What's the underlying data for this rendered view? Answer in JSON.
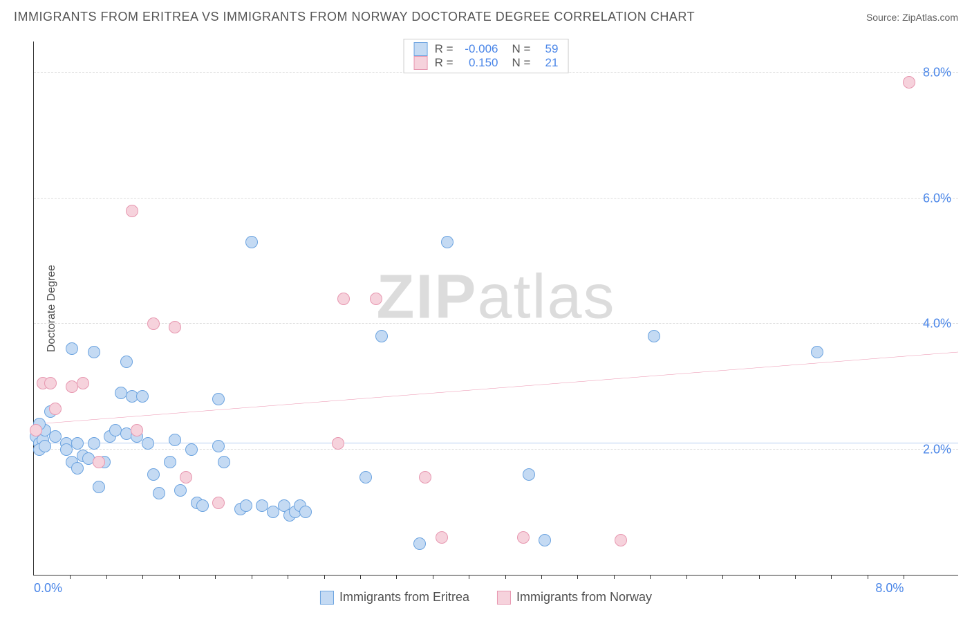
{
  "title": "IMMIGRANTS FROM ERITREA VS IMMIGRANTS FROM NORWAY DOCTORATE DEGREE CORRELATION CHART",
  "source": "Source: ZipAtlas.com",
  "y_axis_label": "Doctorate Degree",
  "watermark_bold": "ZIP",
  "watermark_rest": "atlas",
  "chart": {
    "type": "scatter",
    "xlim": [
      0,
      8.5
    ],
    "ylim": [
      0,
      8.5
    ],
    "y_ticks": [
      2.0,
      4.0,
      6.0,
      8.0
    ],
    "y_tick_labels": [
      "2.0%",
      "4.0%",
      "6.0%",
      "8.0%"
    ],
    "x_ticks": [
      0.333,
      0.667,
      1.0,
      1.333,
      1.667,
      2.0,
      2.333,
      2.667,
      3.0,
      3.333,
      3.667,
      4.0,
      4.333,
      4.667,
      5.0,
      5.333,
      5.667,
      6.0,
      6.333,
      6.667,
      7.0,
      7.333,
      7.667,
      8.0
    ],
    "x_tick_labels_shown": {
      "min": "0.0%",
      "max": "8.0%"
    },
    "grid_color": "#dddddd",
    "background_color": "#ffffff",
    "axis_color": "#333333",
    "tick_label_color": "#4a86e8",
    "series": [
      {
        "name": "Immigrants from Eritrea",
        "fill_color": "#c4daf3",
        "stroke_color": "#6ba3e0",
        "trend_color": "#2a6bd4",
        "trend": {
          "x1": 0,
          "y1": 2.1,
          "x2": 8.5,
          "y2": 2.1
        },
        "R": "-0.006",
        "N": "59",
        "point_radius": 9,
        "points": [
          [
            0.02,
            2.2
          ],
          [
            0.05,
            2.1
          ],
          [
            0.08,
            2.15
          ],
          [
            0.05,
            2.0
          ],
          [
            0.1,
            2.05
          ],
          [
            0.1,
            2.3
          ],
          [
            0.05,
            2.4
          ],
          [
            0.15,
            2.6
          ],
          [
            0.2,
            2.2
          ],
          [
            0.3,
            2.1
          ],
          [
            0.3,
            2.0
          ],
          [
            0.35,
            1.8
          ],
          [
            0.4,
            1.7
          ],
          [
            0.4,
            2.1
          ],
          [
            0.45,
            1.9
          ],
          [
            0.5,
            1.85
          ],
          [
            0.55,
            2.1
          ],
          [
            0.6,
            1.4
          ],
          [
            0.65,
            1.8
          ],
          [
            0.7,
            2.2
          ],
          [
            0.75,
            2.3
          ],
          [
            0.8,
            2.9
          ],
          [
            0.85,
            2.25
          ],
          [
            0.85,
            3.4
          ],
          [
            0.9,
            2.85
          ],
          [
            0.95,
            2.2
          ],
          [
            1.0,
            2.85
          ],
          [
            1.05,
            2.1
          ],
          [
            1.1,
            1.6
          ],
          [
            1.15,
            1.3
          ],
          [
            1.25,
            1.8
          ],
          [
            1.3,
            2.15
          ],
          [
            1.35,
            1.35
          ],
          [
            1.45,
            2.0
          ],
          [
            1.5,
            1.15
          ],
          [
            1.55,
            1.1
          ],
          [
            1.7,
            2.8
          ],
          [
            1.7,
            2.05
          ],
          [
            1.75,
            1.8
          ],
          [
            1.9,
            1.05
          ],
          [
            1.95,
            1.1
          ],
          [
            2.0,
            5.3
          ],
          [
            2.1,
            1.1
          ],
          [
            2.2,
            1.0
          ],
          [
            2.3,
            1.1
          ],
          [
            2.35,
            0.95
          ],
          [
            2.4,
            1.0
          ],
          [
            2.45,
            1.1
          ],
          [
            2.5,
            1.0
          ],
          [
            3.05,
            1.55
          ],
          [
            3.2,
            3.8
          ],
          [
            3.55,
            0.5
          ],
          [
            3.8,
            5.3
          ],
          [
            4.55,
            1.6
          ],
          [
            4.7,
            0.55
          ],
          [
            5.7,
            3.8
          ],
          [
            7.2,
            3.55
          ],
          [
            0.35,
            3.6
          ],
          [
            0.55,
            3.55
          ]
        ]
      },
      {
        "name": "Immigrants from Norway",
        "fill_color": "#f6d2dc",
        "stroke_color": "#e797b0",
        "trend_color": "#e25b87",
        "trend": {
          "x1": 0,
          "y1": 2.4,
          "x2": 8.5,
          "y2": 3.55
        },
        "R": "0.150",
        "N": "21",
        "point_radius": 9,
        "points": [
          [
            0.02,
            2.3
          ],
          [
            0.08,
            3.05
          ],
          [
            0.15,
            3.05
          ],
          [
            0.2,
            2.65
          ],
          [
            0.35,
            3.0
          ],
          [
            0.45,
            3.05
          ],
          [
            0.6,
            1.8
          ],
          [
            0.9,
            5.8
          ],
          [
            1.1,
            4.0
          ],
          [
            1.3,
            3.95
          ],
          [
            1.4,
            1.55
          ],
          [
            1.7,
            1.15
          ],
          [
            2.8,
            2.1
          ],
          [
            2.85,
            4.4
          ],
          [
            3.15,
            4.4
          ],
          [
            3.6,
            1.55
          ],
          [
            3.75,
            0.6
          ],
          [
            4.5,
            0.6
          ],
          [
            5.4,
            0.55
          ],
          [
            8.05,
            7.85
          ],
          [
            0.95,
            2.3
          ]
        ]
      }
    ]
  },
  "legend_top": {
    "rows": [
      {
        "color_fill": "#c4daf3",
        "color_stroke": "#6ba3e0",
        "R_label": "R =",
        "R_val": "-0.006",
        "N_label": "N =",
        "N_val": "59"
      },
      {
        "color_fill": "#f6d2dc",
        "color_stroke": "#e797b0",
        "R_label": "R =",
        "R_val": "0.150",
        "N_label": "N =",
        "N_val": "21"
      }
    ]
  },
  "legend_bottom": [
    {
      "label": "Immigrants from Eritrea",
      "fill": "#c4daf3",
      "stroke": "#6ba3e0"
    },
    {
      "label": "Immigrants from Norway",
      "fill": "#f6d2dc",
      "stroke": "#e797b0"
    }
  ]
}
